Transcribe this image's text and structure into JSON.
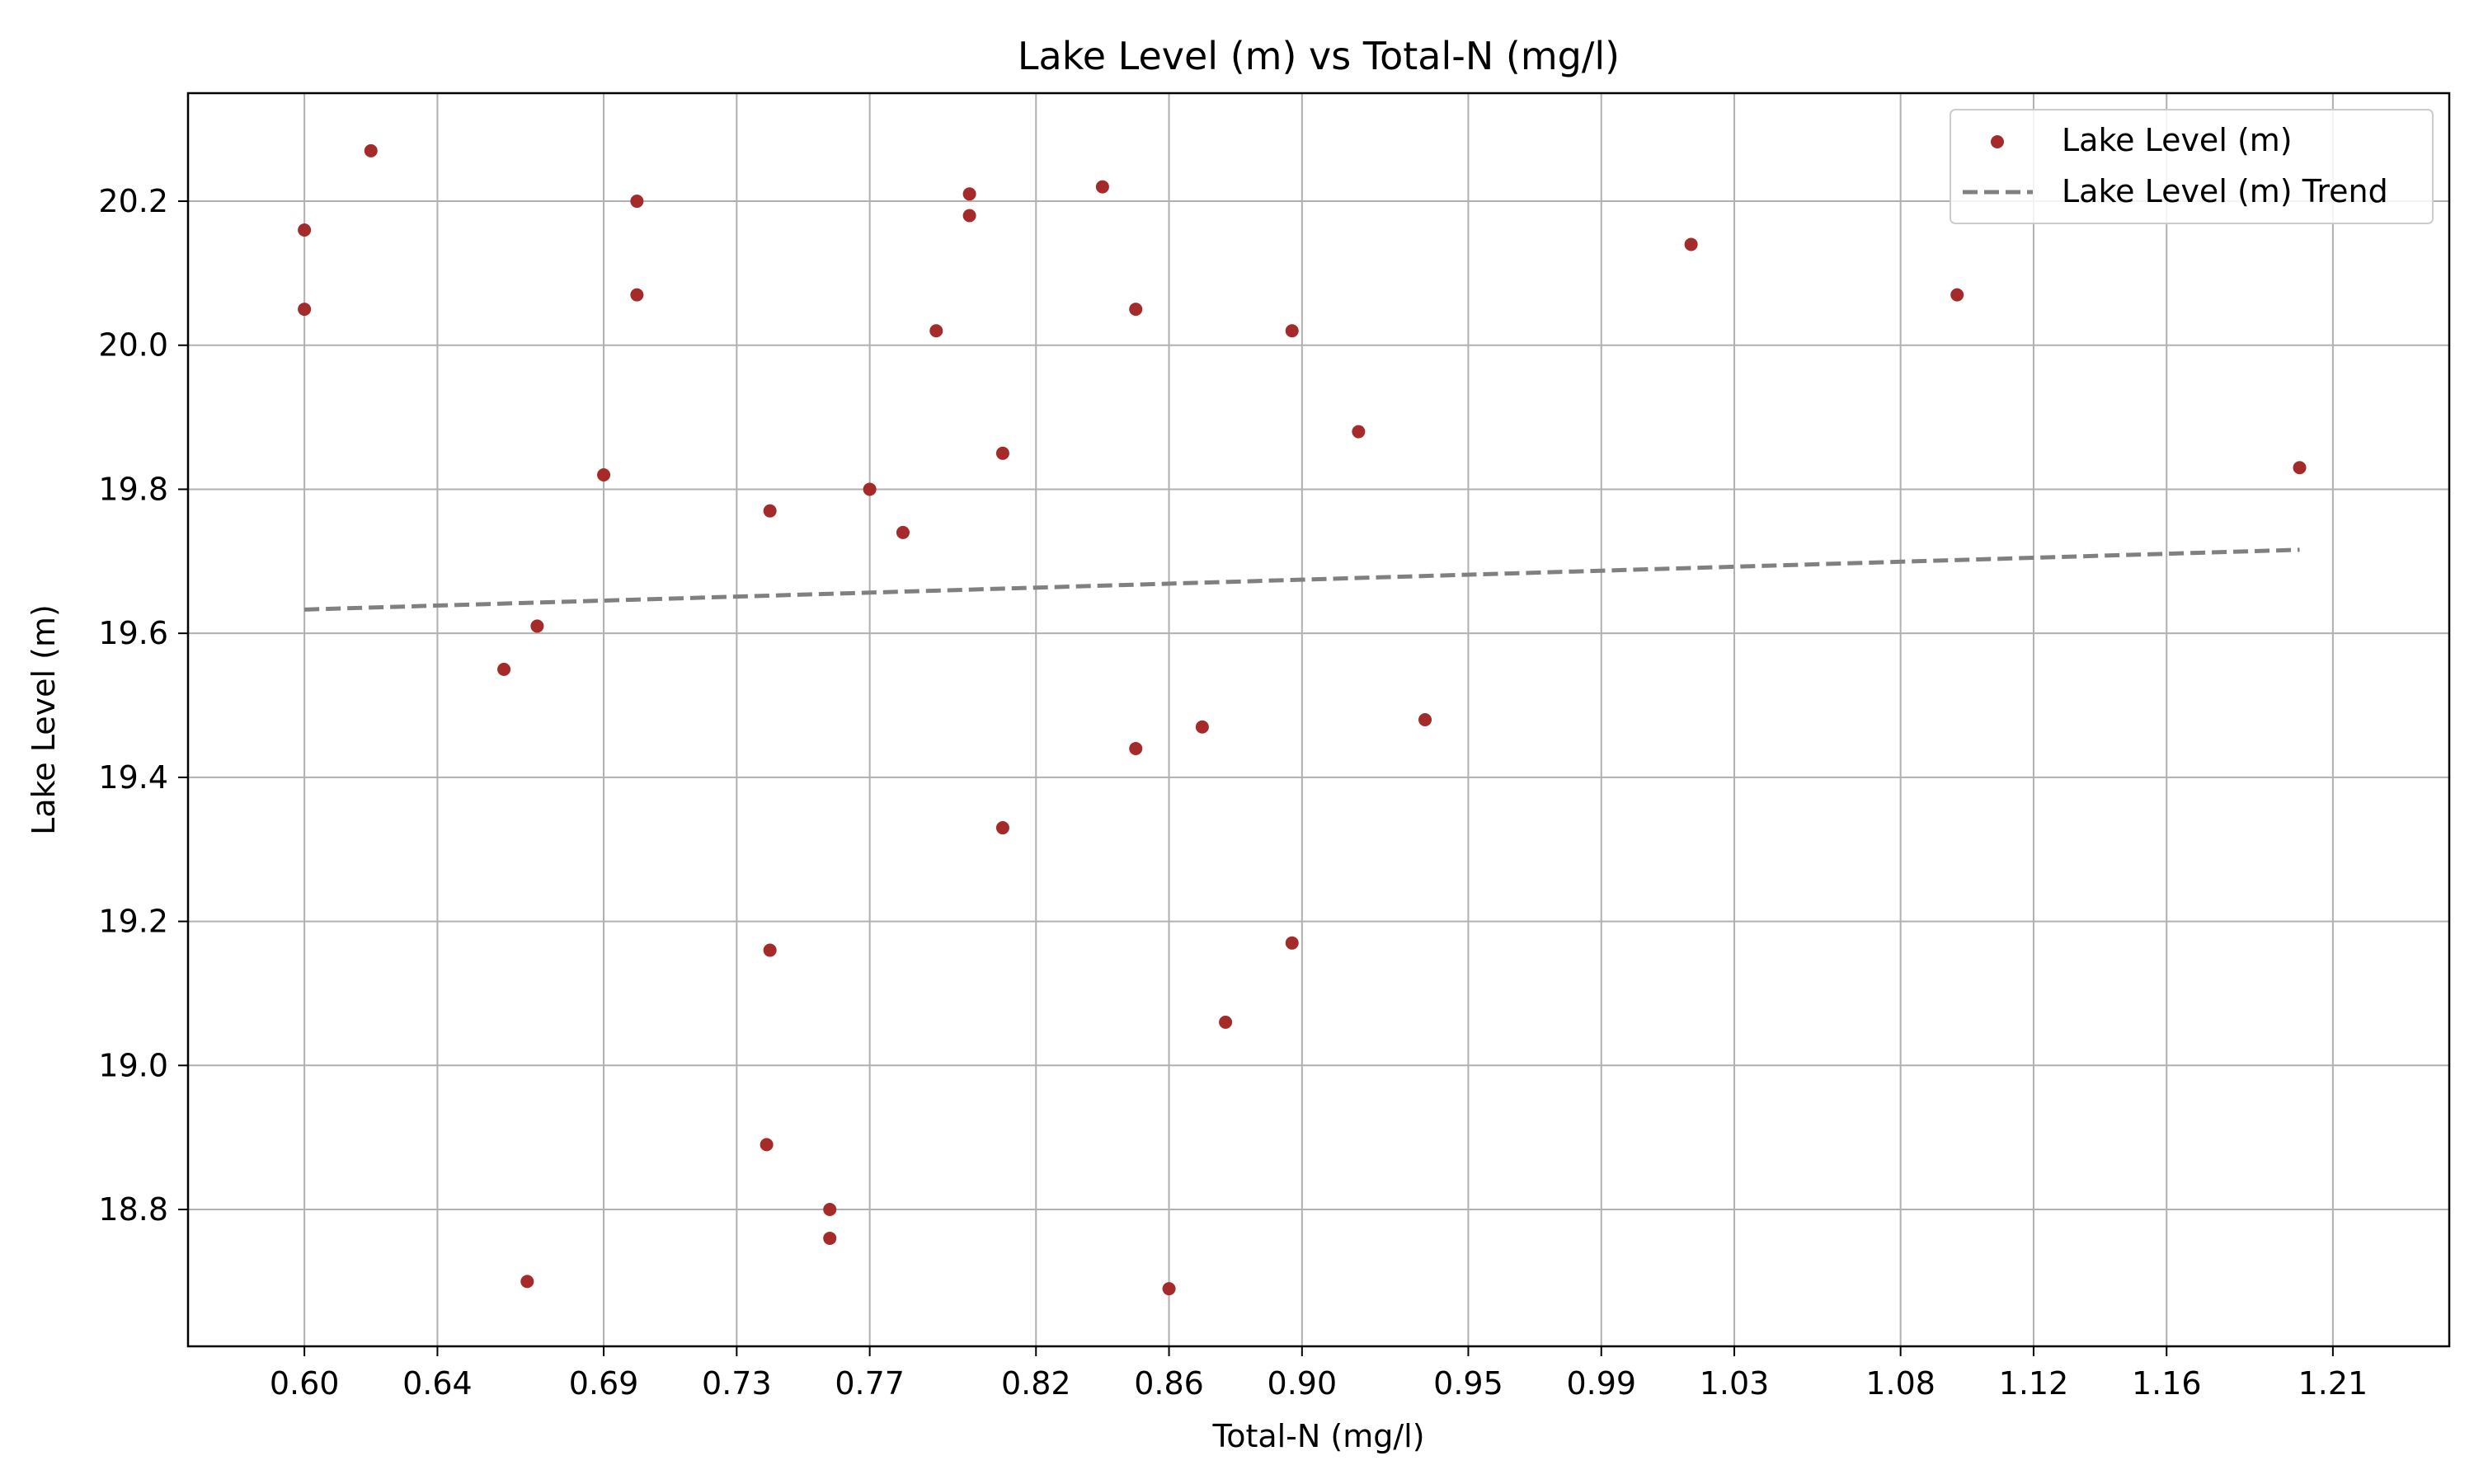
{
  "chart_data": {
    "type": "scatter",
    "title": "Lake Level (m) vs Total-N (mg/l)",
    "xlabel": "Total-N (mg/l)",
    "ylabel": "Lake Level (m)",
    "xlim": [
      0.565,
      1.245
    ],
    "ylim": [
      18.61,
      20.35
    ],
    "x_ticks": [
      0.6,
      0.64,
      0.69,
      0.73,
      0.77,
      0.82,
      0.86,
      0.9,
      0.95,
      0.99,
      1.03,
      1.08,
      1.12,
      1.16,
      1.21
    ],
    "x_tick_labels": [
      "0.60",
      "0.64",
      "0.69",
      "0.73",
      "0.77",
      "0.82",
      "0.86",
      "0.90",
      "0.95",
      "0.99",
      "1.03",
      "1.08",
      "1.12",
      "1.16",
      "1.21"
    ],
    "y_ticks": [
      18.8,
      19.0,
      19.2,
      19.4,
      19.6,
      19.8,
      20.0,
      20.2
    ],
    "y_tick_labels": [
      "18.8",
      "19.0",
      "19.2",
      "19.4",
      "19.6",
      "19.8",
      "20.0",
      "20.2"
    ],
    "grid": true,
    "legend_position": "top-right",
    "colors": {
      "points": "#a52a2a",
      "trend": "#808080",
      "grid": "#b0b0b0"
    },
    "series": [
      {
        "name": "Lake Level (m)",
        "kind": "scatter",
        "points": [
          [
            0.6,
            20.16
          ],
          [
            0.6,
            20.05
          ],
          [
            0.62,
            20.27
          ],
          [
            0.66,
            19.55
          ],
          [
            0.667,
            18.7
          ],
          [
            0.67,
            19.61
          ],
          [
            0.69,
            19.82
          ],
          [
            0.7,
            20.2
          ],
          [
            0.7,
            20.07
          ],
          [
            0.74,
            19.77
          ],
          [
            0.74,
            19.16
          ],
          [
            0.739,
            18.89
          ],
          [
            0.758,
            18.8
          ],
          [
            0.758,
            18.76
          ],
          [
            0.77,
            19.8
          ],
          [
            0.78,
            19.74
          ],
          [
            0.79,
            20.02
          ],
          [
            0.8,
            20.21
          ],
          [
            0.8,
            20.18
          ],
          [
            0.81,
            19.85
          ],
          [
            0.81,
            19.33
          ],
          [
            0.84,
            20.22
          ],
          [
            0.85,
            20.05
          ],
          [
            0.85,
            19.44
          ],
          [
            0.86,
            18.69
          ],
          [
            0.87,
            19.47
          ],
          [
            0.877,
            19.06
          ],
          [
            0.897,
            20.02
          ],
          [
            0.897,
            19.17
          ],
          [
            0.917,
            19.88
          ],
          [
            0.937,
            19.48
          ],
          [
            1.017,
            20.14
          ],
          [
            1.097,
            20.07
          ],
          [
            1.2,
            19.83
          ]
        ]
      },
      {
        "name": "Lake Level (m) Trend",
        "kind": "line",
        "style": "dashed",
        "points": [
          [
            0.6,
            19.633
          ],
          [
            1.2,
            19.716
          ]
        ]
      }
    ]
  }
}
